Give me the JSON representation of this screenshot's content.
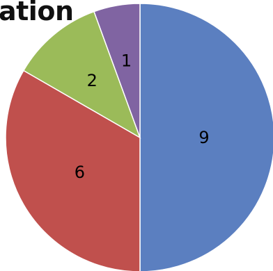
{
  "chart_data": {
    "type": "pie",
    "title": "ation",
    "values": [
      9,
      6,
      2,
      1
    ],
    "data_labels": [
      "9",
      "6",
      "2",
      "1"
    ],
    "colors": [
      "#5b7fc0",
      "#c0504d",
      "#9bbb59",
      "#8064a2"
    ],
    "start_angle_deg": 0,
    "direction": "clockwise",
    "legend": "none"
  }
}
